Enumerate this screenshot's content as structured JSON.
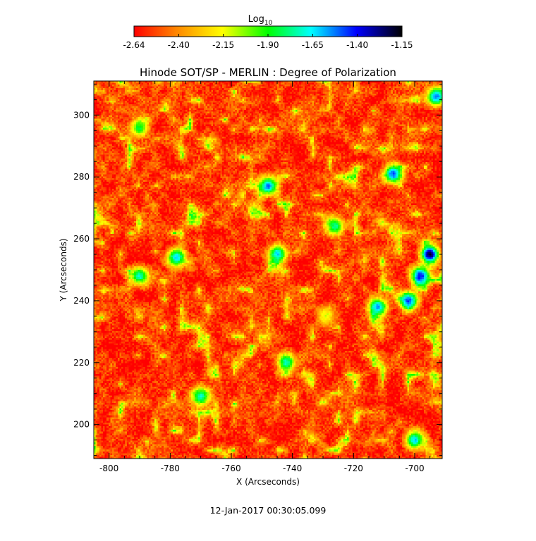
{
  "colorbar": {
    "title": "Log",
    "title_subscript": "10",
    "tick_labels": [
      "-2.64",
      "-2.40",
      "-2.15",
      "-1.90",
      "-1.65",
      "-1.40",
      "-1.15"
    ],
    "range": [
      -2.64,
      -1.15
    ],
    "colormap": [
      "#ff0000",
      "#ff8800",
      "#ffff00",
      "#00ff00",
      "#00ffff",
      "#0000ff",
      "#000000"
    ]
  },
  "chart_data": {
    "type": "heatmap",
    "title": "Hinode SOT/SP - MERLIN : Degree of Polarization",
    "xlabel": "X (Arcseconds)",
    "ylabel": "Y (Arcseconds)",
    "xlim": [
      -805,
      -691
    ],
    "ylim": [
      189,
      311
    ],
    "x_ticks": [
      -800,
      -780,
      -760,
      -740,
      -720,
      -700
    ],
    "y_ticks": [
      200,
      220,
      240,
      260,
      280,
      300
    ],
    "background_value": -2.5,
    "features": [
      {
        "x": -698,
        "y": 248,
        "value": -1.4,
        "note": "dense polarized cluster"
      },
      {
        "x": -695,
        "y": 255,
        "value": -1.2
      },
      {
        "x": -702,
        "y": 240,
        "value": -1.45
      },
      {
        "x": -707,
        "y": 281,
        "value": -1.45
      },
      {
        "x": -748,
        "y": 277,
        "value": -1.5
      },
      {
        "x": -778,
        "y": 254,
        "value": -1.6
      },
      {
        "x": -745,
        "y": 255,
        "value": -1.6
      },
      {
        "x": -790,
        "y": 248,
        "value": -1.7
      },
      {
        "x": -770,
        "y": 209,
        "value": -1.7
      },
      {
        "x": -742,
        "y": 220,
        "value": -1.7
      },
      {
        "x": -712,
        "y": 238,
        "value": -1.55
      },
      {
        "x": -726,
        "y": 264,
        "value": -1.75
      },
      {
        "x": -700,
        "y": 195,
        "value": -1.6
      },
      {
        "x": -693,
        "y": 306,
        "value": -1.5
      },
      {
        "x": -790,
        "y": 296,
        "value": -1.85
      },
      {
        "x": -729,
        "y": 235,
        "value": -2.1
      }
    ]
  },
  "footer": {
    "timestamp": "12-Jan-2017 00:30:05.099"
  }
}
